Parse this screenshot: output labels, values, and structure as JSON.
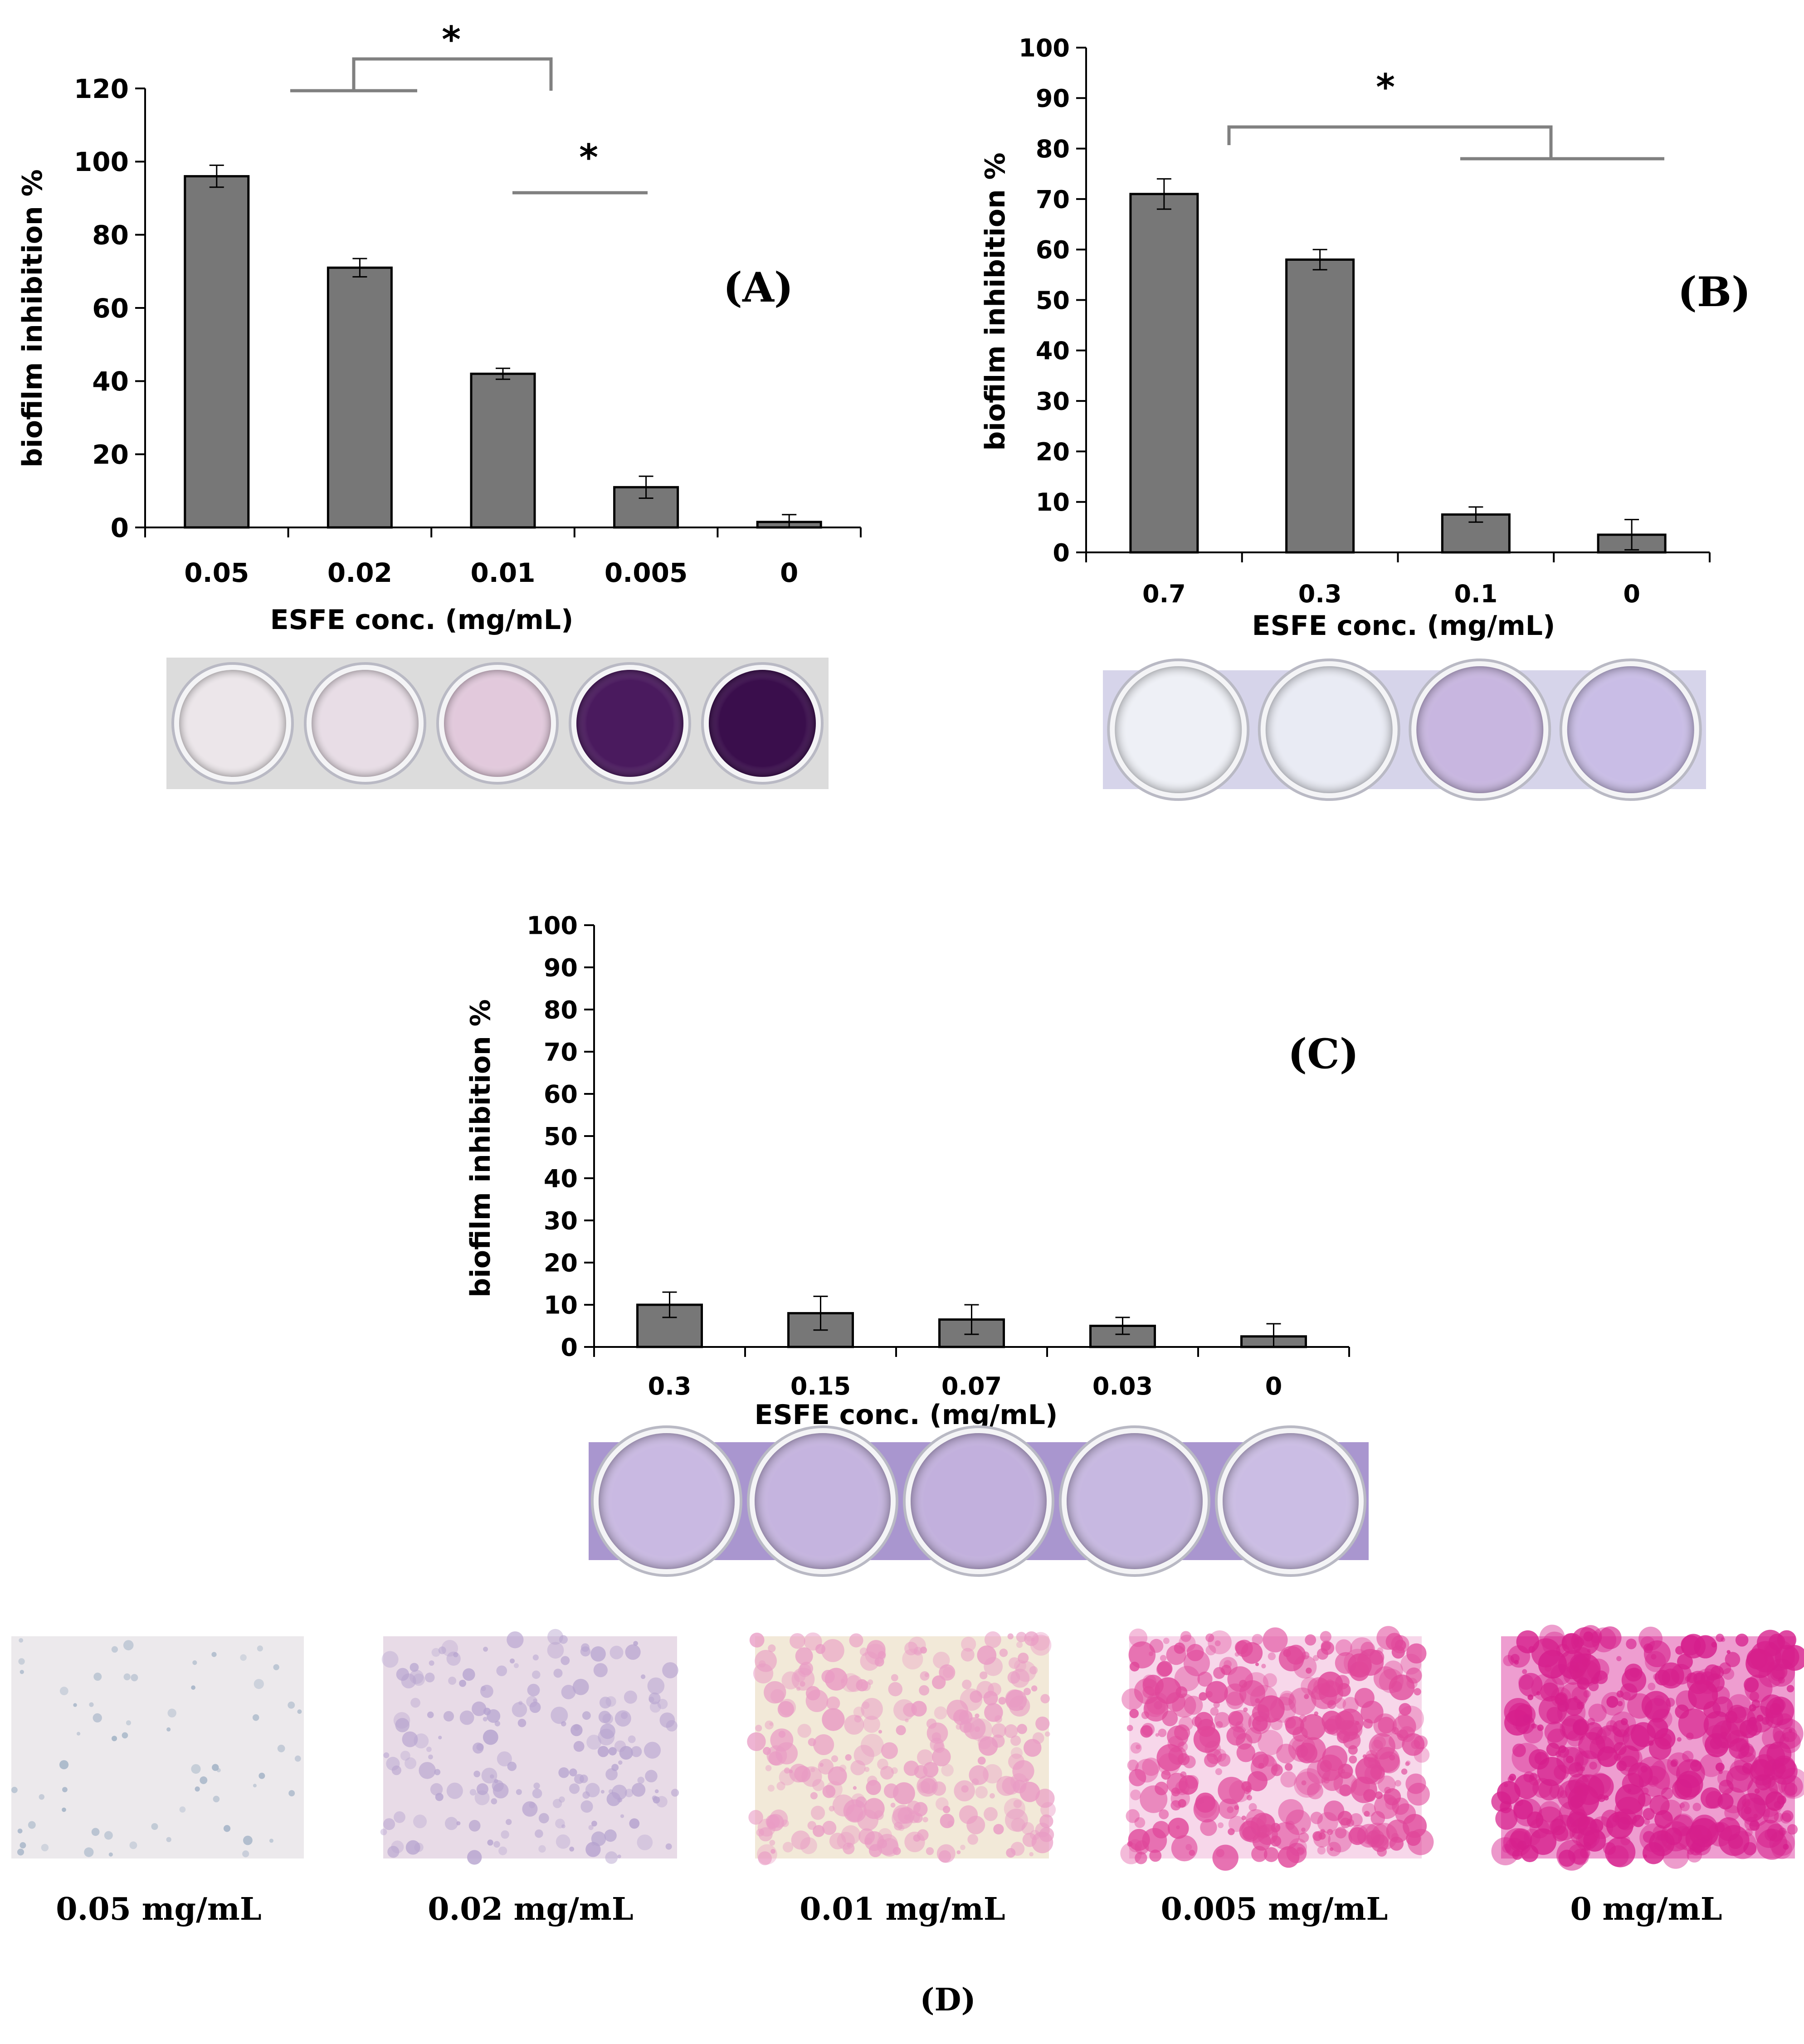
{
  "chart_data": [
    {
      "panel": "(A)",
      "type": "bar",
      "xlabel": "ESFE conc. (mg/mL)",
      "ylabel": "biofilm inhibition %",
      "ylim": [
        0,
        120
      ],
      "yticks": [
        0,
        20,
        40,
        60,
        80,
        100,
        120
      ],
      "categories": [
        "0.05",
        "0.02",
        "0.01",
        "0.005",
        "0"
      ],
      "values": [
        96,
        71,
        42,
        11,
        1.5
      ],
      "errors": [
        3,
        2.5,
        1.5,
        3,
        2
      ],
      "bar_color": "#777777",
      "significance": [
        {
          "label": "*",
          "groups": [
            [
              "0.05",
              "0.02"
            ],
            [
              "0.01"
            ]
          ]
        },
        {
          "label": "*",
          "groups": [
            [
              "0.01",
              "0.005"
            ]
          ]
        }
      ]
    },
    {
      "panel": "(B)",
      "type": "bar",
      "xlabel": "ESFE conc. (mg/mL)",
      "ylabel": "biofilm inhibition %",
      "ylim": [
        0,
        100
      ],
      "yticks": [
        0,
        10,
        20,
        30,
        40,
        50,
        60,
        70,
        80,
        90,
        100
      ],
      "categories": [
        "0.7",
        "0.3",
        "0.1",
        "0"
      ],
      "values": [
        71,
        58,
        7.5,
        3.5
      ],
      "errors": [
        3,
        2,
        1.5,
        3
      ],
      "bar_color": "#777777",
      "significance": [
        {
          "label": "*",
          "groups": [
            [
              "0.7"
            ],
            [
              "0.1",
              "0"
            ]
          ]
        }
      ]
    },
    {
      "panel": "(C)",
      "type": "bar",
      "xlabel": "ESFE conc. (mg/mL)",
      "ylabel": "biofilm inhibition %",
      "ylim": [
        0,
        100
      ],
      "yticks": [
        0,
        10,
        20,
        30,
        40,
        50,
        60,
        70,
        80,
        90,
        100
      ],
      "categories": [
        "0.3",
        "0.15",
        "0.07",
        "0.03",
        "0"
      ],
      "values": [
        10,
        8,
        6.5,
        5,
        2.5
      ],
      "errors": [
        3,
        4,
        3.5,
        2,
        3
      ],
      "bar_color": "#777777",
      "significance": []
    }
  ],
  "well_photos": {
    "A": {
      "wells": [
        "#ece6ea",
        "#e8dde6",
        "#e2c9dc",
        "#4a1a5e",
        "#3a0e4c"
      ],
      "background": "#dcdcdc"
    },
    "B": {
      "wells": [
        "#eef0f6",
        "#e9ebf4",
        "#c8b6e0",
        "#c9bde6"
      ],
      "background": "#d6d4ea"
    },
    "C": {
      "wells": [
        "#c9b9e2",
        "#c5b4df",
        "#c2b0dd",
        "#c7b8e1",
        "#cbbde4"
      ],
      "background": "#a996cf"
    }
  },
  "micrographs": {
    "panel": "(D)",
    "items": [
      {
        "label": "0.05 mg/mL",
        "base": "#ece9ec",
        "stain": "#9fb0c4",
        "density": 0.05
      },
      {
        "label": "0.02 mg/mL",
        "base": "#e8dbe7",
        "stain": "#b6a3cf",
        "density": 0.35
      },
      {
        "label": "0.01 mg/mL",
        "base": "#f2e9d8",
        "stain": "#e99bc4",
        "density": 0.6
      },
      {
        "label": "0.005 mg/mL",
        "base": "#f7d7ea",
        "stain": "#e0479a",
        "density": 0.8
      },
      {
        "label": "0 mg/mL",
        "base": "#ee9dd0",
        "stain": "#d61f8c",
        "density": 0.95
      }
    ]
  }
}
